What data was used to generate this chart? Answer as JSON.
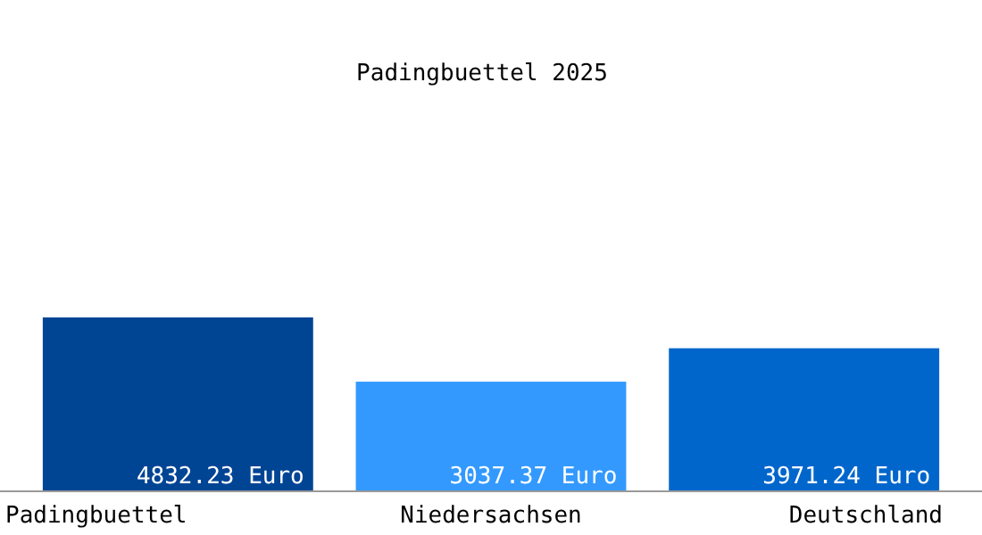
{
  "chart_data": {
    "type": "bar",
    "title": "Padingbuettel 2025",
    "categories": [
      "Padingbuettel",
      "Niedersachsen",
      "Deutschland"
    ],
    "values": [
      4832.23,
      3037.37,
      3971.24
    ],
    "colors": [
      "#004494",
      "#3399ff",
      "#0066cc"
    ],
    "value_labels": [
      "4832.23 Euro",
      "3037.37 Euro",
      "3971.24 Euro"
    ]
  }
}
